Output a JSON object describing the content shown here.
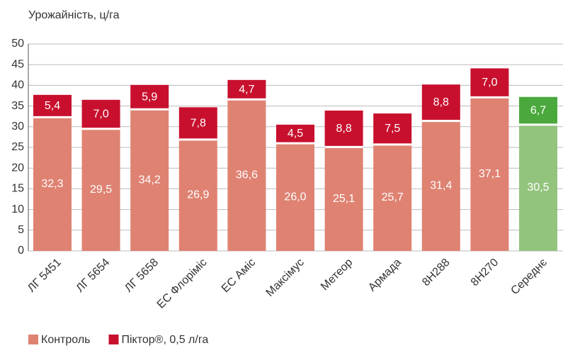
{
  "chart_data": {
    "type": "stacked_bar",
    "y_axis_label": "Урожайність, ц/га",
    "categories": [
      "ЛГ 5451",
      "ЛГ 5654",
      "ЛГ 5658",
      "ЕС Флоріміс",
      "ЕС Аміс",
      "Максімус",
      "Метеор",
      "Армада",
      "8Н288",
      "8Н270",
      "Середнє"
    ],
    "series": [
      {
        "name": "Контроль",
        "color": "#df8272",
        "colors": [
          "#df8272",
          "#df8272",
          "#df8272",
          "#df8272",
          "#df8272",
          "#df8272",
          "#df8272",
          "#df8272",
          "#df8272",
          "#df8272",
          "#93c47d"
        ],
        "values": [
          32.3,
          29.5,
          34.2,
          26.9,
          36.6,
          26.0,
          25.1,
          25.7,
          31.4,
          37.1,
          30.5
        ],
        "value_labels": [
          "32,3",
          "29,5",
          "34,2",
          "26,9",
          "36,6",
          "26,0",
          "25,1",
          "25,7",
          "31,4",
          "37,1",
          "30,5"
        ]
      },
      {
        "name": "Піктор®, 0,5 л/га",
        "color": "#c8102e",
        "colors": [
          "#c8102e",
          "#c8102e",
          "#c8102e",
          "#c8102e",
          "#c8102e",
          "#c8102e",
          "#c8102e",
          "#c8102e",
          "#c8102e",
          "#c8102e",
          "#4aa83c"
        ],
        "values": [
          5.4,
          7.0,
          5.9,
          7.8,
          4.7,
          4.5,
          8.8,
          7.5,
          8.8,
          7.0,
          6.7
        ],
        "value_labels": [
          "5,4",
          "7,0",
          "5,9",
          "7,8",
          "4,7",
          "4,5",
          "8,8",
          "7,5",
          "8,8",
          "7,0",
          "6,7"
        ]
      }
    ],
    "ylim": [
      0,
      50
    ],
    "yticks": [
      0,
      5,
      10,
      15,
      20,
      25,
      30,
      35,
      40,
      45,
      50
    ],
    "grid": true,
    "legend": "bottom-left"
  }
}
